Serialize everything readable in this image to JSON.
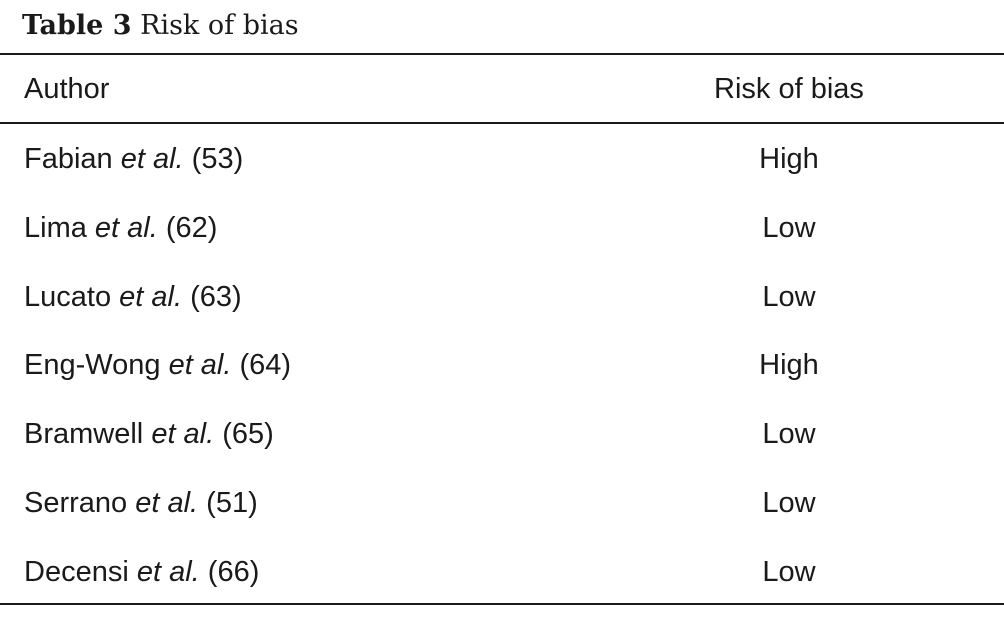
{
  "caption": {
    "label": "Table 3",
    "title": "Risk of bias"
  },
  "columns": {
    "author": "Author",
    "risk": "Risk of bias"
  },
  "rows": [
    {
      "name": "Fabian",
      "etal": "et al.",
      "ref": "(53)",
      "risk": "High"
    },
    {
      "name": "Lima",
      "etal": "et al.",
      "ref": "(62)",
      "risk": "Low"
    },
    {
      "name": "Lucato",
      "etal": "et al.",
      "ref": "(63)",
      "risk": "Low"
    },
    {
      "name": "Eng-Wong",
      "etal": "et al.",
      "ref": "(64)",
      "risk": "High"
    },
    {
      "name": "Bramwell",
      "etal": "et al.",
      "ref": "(65)",
      "risk": "Low"
    },
    {
      "name": "Serrano",
      "etal": "et al.",
      "ref": "(51)",
      "risk": "Low"
    },
    {
      "name": "Decensi",
      "etal": "et al.",
      "ref": "(66)",
      "risk": "Low"
    }
  ]
}
